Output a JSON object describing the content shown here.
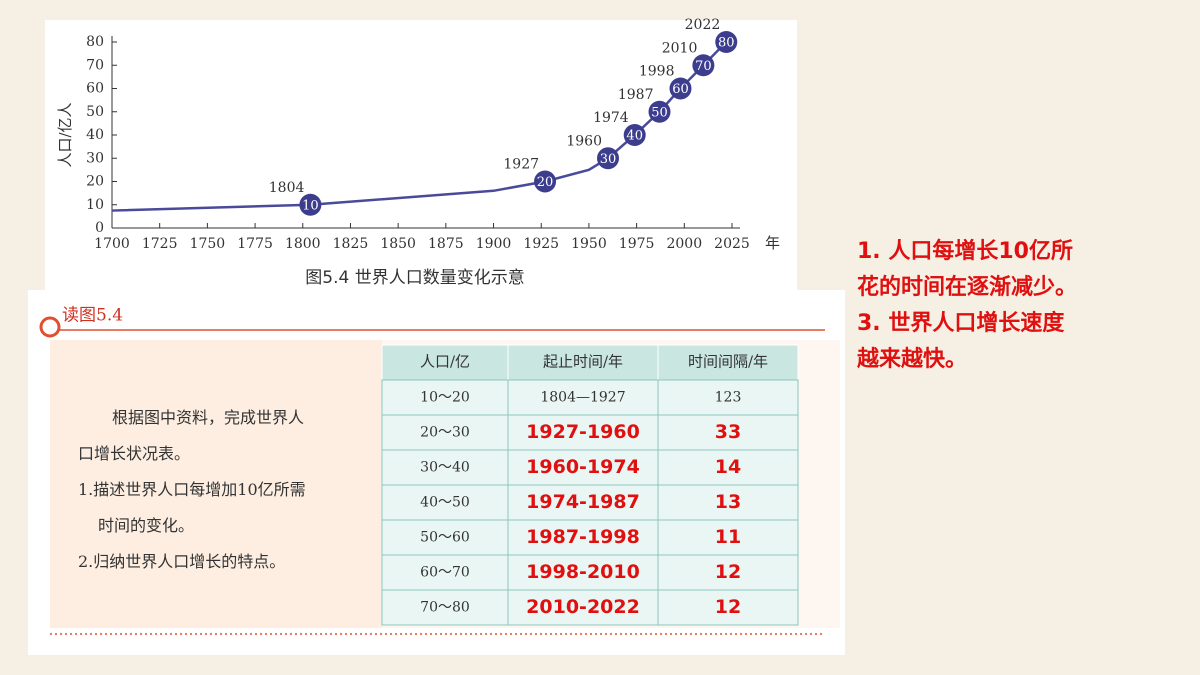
{
  "chart_data": {
    "type": "line",
    "caption": "图5.4  世界人口数量变化示意",
    "ylabel": "人口/亿人",
    "xunit": "年",
    "x": [
      1700,
      1804,
      1900,
      1927,
      1950,
      1960,
      1974,
      1987,
      1998,
      2010,
      2022
    ],
    "values": [
      7.5,
      10,
      16,
      20,
      25,
      30,
      40,
      50,
      60,
      70,
      80
    ],
    "color": "#4a4a9a",
    "markers": {
      "x": [
        1804,
        1927,
        1960,
        1974,
        1987,
        1998,
        2010,
        2022
      ],
      "values": [
        10,
        20,
        30,
        40,
        50,
        60,
        70,
        80
      ],
      "color": "#3d3d8e"
    },
    "xlim": [
      1700,
      2025
    ],
    "xticks": [
      1700,
      1725,
      1750,
      1775,
      1800,
      1825,
      1850,
      1875,
      1900,
      1925,
      1950,
      1975,
      2000,
      2025
    ],
    "ylim": [
      0,
      80
    ],
    "yticks": [
      0,
      10,
      20,
      30,
      40,
      50,
      60,
      70,
      80
    ]
  },
  "section": {
    "title": "读图5.4",
    "prompt": [
      "根据图中资料，完成世界人",
      "口增长状况表。",
      "1.描述世界人口每增加10亿所需",
      "时间的变化。",
      "2.归纳世界人口增长的特点。"
    ]
  },
  "table": {
    "header": [
      "人口/亿",
      "起止时间/年",
      "时间间隔/年"
    ],
    "rows": [
      [
        "10～20",
        "1804—1927",
        "123"
      ],
      [
        "20～30",
        "1927-1960",
        "33"
      ],
      [
        "30～40",
        "1960-1974",
        "14"
      ],
      [
        "40～50",
        "1974-1987",
        "13"
      ],
      [
        "50～60",
        "1987-1998",
        "11"
      ],
      [
        "60～70",
        "1998-2010",
        "12"
      ],
      [
        "70～80",
        "2010-2022",
        "12"
      ]
    ]
  },
  "notes": [
    "1. 人口每增长10亿所",
    "花的时间在逐渐减少。",
    "3. 世界人口增长速度",
    "越来越快。"
  ]
}
